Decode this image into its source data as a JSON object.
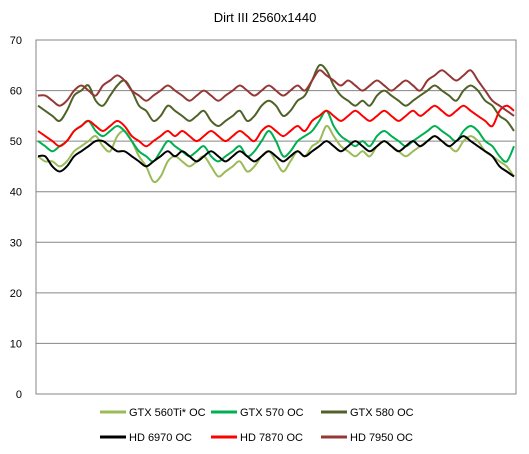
{
  "chart_data": {
    "type": "line",
    "title": "Dirt III 2560x1440",
    "xlabel": "",
    "ylabel": "",
    "ylim": [
      0,
      70
    ],
    "yticks": [
      0,
      10,
      20,
      30,
      40,
      50,
      60,
      70
    ],
    "grid": true,
    "legend_position": "bottom",
    "series": [
      {
        "name": "GTX 560Ti* OC",
        "color": "#9bbb59",
        "values": [
          47,
          46,
          46,
          45,
          46,
          48,
          49,
          50,
          51,
          49,
          48,
          51,
          52,
          50,
          47,
          45,
          42,
          43,
          46,
          47,
          46,
          45,
          46,
          47,
          45,
          43,
          44,
          45,
          46,
          44,
          45,
          47,
          48,
          46,
          44,
          46,
          48,
          47,
          49,
          50,
          53,
          51,
          49,
          48,
          47,
          48,
          47,
          49,
          50,
          49,
          48,
          47,
          48,
          49,
          50,
          51,
          50,
          49,
          48,
          50,
          51,
          50,
          48,
          47,
          46,
          45,
          43
        ]
      },
      {
        "name": "GTX 570 OC",
        "color": "#00b050",
        "values": [
          50,
          49,
          48,
          49,
          50,
          52,
          53,
          54,
          52,
          51,
          52,
          53,
          52,
          50,
          48,
          47,
          46,
          48,
          50,
          49,
          48,
          47,
          48,
          49,
          47,
          46,
          47,
          48,
          49,
          47,
          48,
          50,
          52,
          50,
          47,
          48,
          50,
          51,
          52,
          54,
          56,
          53,
          51,
          50,
          49,
          50,
          49,
          51,
          52,
          51,
          50,
          49,
          50,
          51,
          52,
          53,
          52,
          51,
          50,
          52,
          53,
          52,
          50,
          49,
          47,
          46,
          49
        ]
      },
      {
        "name": "GTX 580 OC",
        "color": "#4f6228",
        "values": [
          57,
          56,
          55,
          54,
          56,
          59,
          60,
          61,
          58,
          57,
          59,
          61,
          62,
          60,
          57,
          56,
          54,
          55,
          57,
          56,
          55,
          54,
          55,
          56,
          54,
          53,
          54,
          55,
          56,
          54,
          55,
          57,
          58,
          57,
          55,
          56,
          58,
          59,
          62,
          65,
          64,
          61,
          59,
          58,
          57,
          58,
          57,
          59,
          60,
          59,
          58,
          57,
          58,
          59,
          60,
          61,
          60,
          59,
          58,
          60,
          61,
          60,
          58,
          57,
          55,
          54,
          52
        ]
      },
      {
        "name": "HD 6970 OC",
        "color": "#000000",
        "values": [
          47,
          47,
          45,
          44,
          45,
          47,
          48,
          49,
          50,
          50,
          49,
          48,
          48,
          47,
          46,
          45,
          46,
          47,
          48,
          47,
          48,
          47,
          46,
          47,
          48,
          47,
          46,
          47,
          48,
          47,
          46,
          47,
          48,
          47,
          46,
          47,
          48,
          47,
          48,
          49,
          50,
          49,
          48,
          49,
          50,
          49,
          48,
          49,
          50,
          49,
          48,
          49,
          50,
          49,
          50,
          51,
          50,
          49,
          50,
          51,
          50,
          49,
          48,
          47,
          45,
          44,
          43
        ]
      },
      {
        "name": "HD 7870 OC",
        "color": "#ff0000",
        "values": [
          52,
          51,
          50,
          49,
          50,
          52,
          53,
          54,
          53,
          52,
          53,
          54,
          53,
          51,
          50,
          49,
          50,
          51,
          52,
          51,
          52,
          51,
          50,
          51,
          52,
          51,
          50,
          51,
          52,
          51,
          50,
          52,
          53,
          52,
          51,
          52,
          53,
          52,
          54,
          55,
          56,
          55,
          54,
          55,
          56,
          55,
          54,
          55,
          56,
          55,
          54,
          55,
          56,
          55,
          56,
          57,
          56,
          55,
          56,
          57,
          56,
          55,
          54,
          53,
          56,
          57,
          56
        ]
      },
      {
        "name": "HD 7950 OC",
        "color": "#953735",
        "values": [
          59,
          59,
          58,
          57,
          58,
          60,
          61,
          60,
          59,
          61,
          62,
          63,
          62,
          60,
          59,
          58,
          59,
          60,
          61,
          60,
          59,
          58,
          59,
          60,
          59,
          58,
          59,
          60,
          61,
          60,
          59,
          60,
          61,
          60,
          59,
          60,
          61,
          60,
          62,
          64,
          63,
          62,
          61,
          62,
          61,
          60,
          61,
          62,
          61,
          60,
          61,
          62,
          61,
          60,
          62,
          63,
          64,
          63,
          62,
          63,
          64,
          62,
          60,
          58,
          57,
          56,
          55
        ]
      }
    ]
  }
}
